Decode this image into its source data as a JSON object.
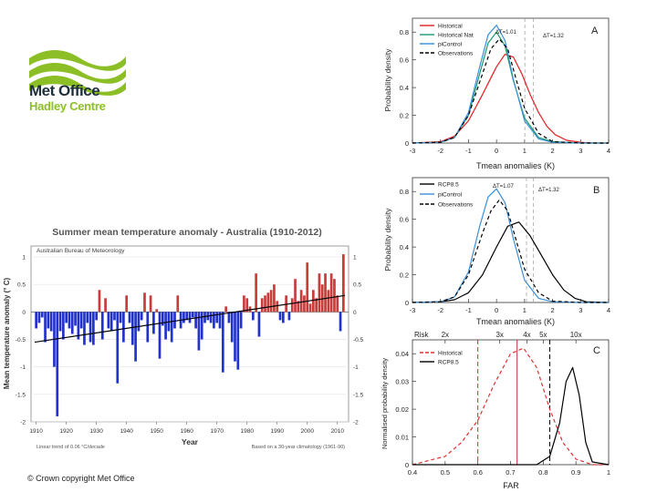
{
  "logo": {
    "title": "Met Office",
    "subtitle": "Hadley Centre"
  },
  "copyright": "© Crown copyright   Met Office",
  "colors": {
    "accent": "#8cbf26",
    "navy": "#1f2f3a"
  },
  "chart_data": [
    {
      "type": "bar",
      "title": "Summer mean temperature anomaly - Australia (1910-2012)",
      "source_label": "Australian Bureau of Meteorology",
      "ylabel": "Mean temperature anomaly (° C)",
      "xlabel": "Year",
      "footnote_left": "Linear trend of 0.06 °C/decade",
      "footnote_right": "Based on a 30-year climatology (1961-90)",
      "ylim": [
        -2,
        1.2
      ],
      "yticks": [
        "1",
        "0.5",
        "0",
        "-0.5",
        "-1",
        "-1.5",
        "-2"
      ],
      "xticks": [
        "1910",
        "1920",
        "1930",
        "1940",
        "1950",
        "1960",
        "1970",
        "1980",
        "1990",
        "2000",
        "2010"
      ],
      "x_start": 1910,
      "trend": {
        "start": -0.55,
        "end": 0.3
      },
      "values": [
        -0.3,
        -0.2,
        -0.1,
        -0.55,
        -0.3,
        -0.35,
        -1.0,
        -1.9,
        -0.35,
        -0.5,
        -0.2,
        -0.3,
        -0.4,
        -0.25,
        -0.5,
        -0.3,
        -0.6,
        -0.2,
        -0.55,
        -0.6,
        -0.15,
        0.4,
        -0.5,
        0.25,
        -0.3,
        -0.35,
        -0.15,
        -1.3,
        -0.2,
        -0.55,
        0.3,
        -0.2,
        -0.6,
        -0.9,
        -0.35,
        -0.15,
        0.35,
        -0.55,
        0.3,
        -0.4,
        0.05,
        -0.85,
        -0.25,
        -0.5,
        -0.35,
        -0.55,
        -0.3,
        0.3,
        -0.3,
        -0.2,
        -0.15,
        -0.2,
        -0.1,
        -0.3,
        -0.7,
        -0.5,
        -0.2,
        -0.15,
        -0.2,
        -0.3,
        -0.2,
        -0.3,
        -1.1,
        0.1,
        -0.2,
        -0.55,
        -0.9,
        -1.05,
        -0.3,
        0.3,
        0.25,
        0.1,
        -0.15,
        0.7,
        -0.45,
        0.25,
        0.3,
        0.35,
        0.4,
        0.5,
        0.2,
        -0.15,
        -0.2,
        0.3,
        -0.15,
        0.25,
        0.6,
        0.2,
        0.4,
        0.3,
        0.9,
        0.15,
        0.4,
        0.25,
        0.7,
        0.5,
        0.7,
        0.4,
        0.7,
        0.6,
        0.3,
        -0.35,
        1.05
      ]
    },
    {
      "type": "line",
      "panel": "A",
      "xlabel": "Tmean anomalies (K)",
      "ylabel": "Probability density",
      "xlim": [
        -3,
        4
      ],
      "ylim": [
        0,
        0.9
      ],
      "xticks": [
        "-3",
        "-2",
        "-1",
        "0",
        "1",
        "2",
        "3",
        "4"
      ],
      "yticks": [
        "0",
        "0.2",
        "0.4",
        "0.6",
        "0.8"
      ],
      "annotations": [
        "ΔT=1.01",
        "ΔT=1.32"
      ],
      "markers": [
        1.01,
        1.32
      ],
      "series": [
        {
          "name": "Historical",
          "color": "#e02020",
          "style": "solid",
          "x": [
            -3,
            -2,
            -1.5,
            -1,
            -0.5,
            0,
            0.3,
            0.6,
            0.9,
            1.2,
            1.5,
            1.8,
            2.1,
            2.5,
            3,
            3.5,
            4
          ],
          "y": [
            0,
            0.01,
            0.05,
            0.16,
            0.35,
            0.55,
            0.64,
            0.62,
            0.5,
            0.35,
            0.22,
            0.12,
            0.06,
            0.02,
            0.005,
            0,
            0
          ]
        },
        {
          "name": "Historical Nat",
          "color": "#1a9a6a",
          "style": "solid",
          "x": [
            -3,
            -2,
            -1.5,
            -1,
            -0.6,
            -0.3,
            0,
            0.3,
            0.6,
            1,
            1.5,
            2,
            3,
            4
          ],
          "y": [
            0,
            0.005,
            0.04,
            0.2,
            0.5,
            0.72,
            0.8,
            0.7,
            0.45,
            0.18,
            0.04,
            0.01,
            0,
            0
          ]
        },
        {
          "name": "piControl",
          "color": "#3a8fd8",
          "style": "solid",
          "x": [
            -3,
            -2,
            -1.5,
            -1,
            -0.6,
            -0.3,
            0,
            0.3,
            0.6,
            1,
            1.5,
            2,
            3,
            4
          ],
          "y": [
            0,
            0.005,
            0.04,
            0.22,
            0.55,
            0.78,
            0.85,
            0.74,
            0.46,
            0.16,
            0.03,
            0.005,
            0,
            0
          ]
        },
        {
          "name": "Observations",
          "color": "#000000",
          "style": "dashed",
          "x": [
            -3,
            -2,
            -1.5,
            -1,
            -0.5,
            -0.2,
            0.1,
            0.4,
            0.7,
            1,
            1.5,
            2,
            3,
            4
          ],
          "y": [
            0,
            0.005,
            0.04,
            0.2,
            0.5,
            0.68,
            0.75,
            0.68,
            0.46,
            0.25,
            0.07,
            0.01,
            0,
            0
          ]
        }
      ]
    },
    {
      "type": "line",
      "panel": "B",
      "xlabel": "Tmean anomalies (K)",
      "ylabel": "Probability density",
      "xlim": [
        -3,
        4
      ],
      "ylim": [
        0,
        0.9
      ],
      "xticks": [
        "-3",
        "-2",
        "-1",
        "0",
        "1",
        "2",
        "3",
        "4"
      ],
      "yticks": [
        "0",
        "0.2",
        "0.4",
        "0.6",
        "0.8"
      ],
      "annotations": [
        "ΔT=1.07",
        "ΔT=1.32"
      ],
      "markers": [
        1.07,
        1.32
      ],
      "series": [
        {
          "name": "RCP8.5",
          "color": "#000000",
          "style": "solid",
          "x": [
            -3,
            -2,
            -1.5,
            -1,
            -0.5,
            0,
            0.4,
            0.8,
            1.2,
            1.6,
            2,
            2.4,
            2.8,
            3.2,
            4
          ],
          "y": [
            0,
            0.005,
            0.02,
            0.07,
            0.2,
            0.4,
            0.55,
            0.58,
            0.48,
            0.34,
            0.2,
            0.09,
            0.03,
            0.005,
            0
          ]
        },
        {
          "name": "piControl",
          "color": "#3a8fd8",
          "style": "solid",
          "x": [
            -3,
            -2,
            -1.5,
            -1,
            -0.6,
            -0.3,
            0,
            0.3,
            0.6,
            1,
            1.5,
            2,
            3,
            4
          ],
          "y": [
            0,
            0.005,
            0.04,
            0.22,
            0.55,
            0.76,
            0.82,
            0.72,
            0.46,
            0.16,
            0.03,
            0.005,
            0,
            0
          ]
        },
        {
          "name": "Observations",
          "color": "#000000",
          "style": "dashed",
          "x": [
            -3,
            -2,
            -1.5,
            -1,
            -0.5,
            -0.2,
            0.1,
            0.4,
            0.7,
            1,
            1.5,
            2,
            3,
            4
          ],
          "y": [
            0,
            0.005,
            0.04,
            0.2,
            0.5,
            0.66,
            0.74,
            0.66,
            0.45,
            0.24,
            0.07,
            0.01,
            0,
            0
          ]
        }
      ]
    },
    {
      "type": "line",
      "panel": "C",
      "xlabel": "FAR",
      "ylabel": "Normalised probability density",
      "xlim": [
        0.4,
        1
      ],
      "ylim": [
        0,
        0.045
      ],
      "xticks": [
        "0.4",
        "0.5",
        "0.6",
        "0.7",
        "0.8",
        "0.9",
        "1"
      ],
      "yticks": [
        "0",
        "0.01",
        "0.02",
        "0.03",
        "0.04"
      ],
      "risk_label": "Risk",
      "risk_ticks": [
        {
          "label": "2x",
          "far": 0.5
        },
        {
          "label": "3x",
          "far": 0.667
        },
        {
          "label": "4x",
          "far": 0.75
        },
        {
          "label": "5x",
          "far": 0.8
        },
        {
          "label": "10x",
          "far": 0.9
        }
      ],
      "vlines": [
        {
          "x": 0.6,
          "color": "#c03030",
          "style": "dashed"
        },
        {
          "x": 0.72,
          "color": "#c03030",
          "style": "solid"
        },
        {
          "x": 0.82,
          "color": "#000000",
          "style": "dashed"
        }
      ],
      "series": [
        {
          "name": "Historical",
          "color": "#e03030",
          "style": "dashed",
          "x": [
            0.4,
            0.5,
            0.55,
            0.6,
            0.65,
            0.7,
            0.74,
            0.78,
            0.82,
            0.86,
            0.9,
            0.95,
            1
          ],
          "y": [
            0,
            0.003,
            0.008,
            0.016,
            0.029,
            0.04,
            0.042,
            0.035,
            0.02,
            0.008,
            0.002,
            0,
            0
          ]
        },
        {
          "name": "RCP8.5",
          "color": "#000000",
          "style": "solid",
          "x": [
            0.4,
            0.7,
            0.78,
            0.82,
            0.85,
            0.87,
            0.89,
            0.91,
            0.93,
            0.95,
            1
          ],
          "y": [
            0,
            0,
            0,
            0.003,
            0.015,
            0.03,
            0.035,
            0.025,
            0.008,
            0.001,
            0
          ]
        }
      ]
    }
  ]
}
